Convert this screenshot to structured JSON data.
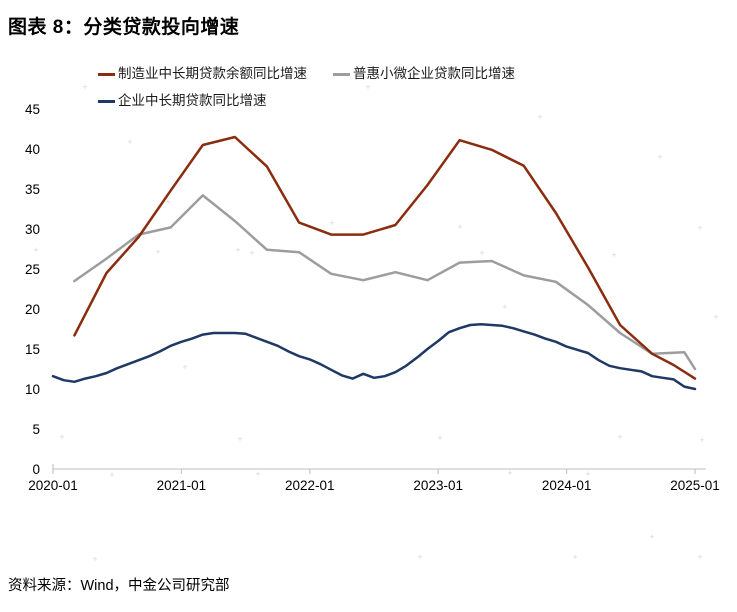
{
  "page": {
    "title": "图表 8：分类贷款投向增速",
    "source": "资料来源：Wind，中金公司研究部"
  },
  "colors": {
    "manufacturing": "#8A2D0F",
    "inclusive": "#9D9D9D",
    "enterprise": "#1F3864",
    "axis": "#C9C9C9",
    "watermark": "#B8B8B8",
    "text": "#000000"
  },
  "chart_data": {
    "type": "line",
    "title": "图表 8：分类贷款投向增速",
    "xlabel": "",
    "ylabel": "",
    "ylim": [
      0,
      45
    ],
    "yticks": [
      0,
      5,
      10,
      15,
      20,
      25,
      30,
      35,
      40,
      45
    ],
    "xticks": [
      "2020-01",
      "2021-01",
      "2022-01",
      "2023-01",
      "2024-01",
      "2025-01"
    ],
    "grid": false,
    "legend_position": "top",
    "watermark_glyph": "+",
    "series": [
      {
        "name": "制造业中长期贷款余额同比增速",
        "color": "#8A2D0F",
        "points": [
          [
            "2020-03",
            16.7
          ],
          [
            "2020-06",
            24.5
          ],
          [
            "2020-09",
            29.0
          ],
          [
            "2020-12",
            34.8
          ],
          [
            "2021-03",
            40.5
          ],
          [
            "2021-06",
            41.5
          ],
          [
            "2021-09",
            37.8
          ],
          [
            "2021-12",
            30.8
          ],
          [
            "2022-03",
            29.3
          ],
          [
            "2022-06",
            29.3
          ],
          [
            "2022-09",
            30.5
          ],
          [
            "2022-12",
            35.5
          ],
          [
            "2023-03",
            41.1
          ],
          [
            "2023-06",
            39.9
          ],
          [
            "2023-09",
            37.9
          ],
          [
            "2023-12",
            32.0
          ],
          [
            "2024-03",
            25.2
          ],
          [
            "2024-06",
            18.0
          ],
          [
            "2024-09",
            14.4
          ],
          [
            "2024-11",
            13.0
          ],
          [
            "2025-01",
            11.3
          ]
        ]
      },
      {
        "name": "普惠小微企业贷款同比增速",
        "color": "#9D9D9D",
        "points": [
          [
            "2020-03",
            23.5
          ],
          [
            "2020-06",
            26.3
          ],
          [
            "2020-09",
            29.3
          ],
          [
            "2020-12",
            30.2
          ],
          [
            "2021-03",
            34.2
          ],
          [
            "2021-06",
            31.0
          ],
          [
            "2021-09",
            27.4
          ],
          [
            "2021-12",
            27.1
          ],
          [
            "2022-03",
            24.4
          ],
          [
            "2022-06",
            23.6
          ],
          [
            "2022-09",
            24.6
          ],
          [
            "2022-12",
            23.6
          ],
          [
            "2023-03",
            25.8
          ],
          [
            "2023-06",
            26.0
          ],
          [
            "2023-09",
            24.2
          ],
          [
            "2023-12",
            23.4
          ],
          [
            "2024-03",
            20.5
          ],
          [
            "2024-06",
            17.0
          ],
          [
            "2024-09",
            14.4
          ],
          [
            "2024-12",
            14.6
          ],
          [
            "2025-01",
            12.5
          ]
        ]
      },
      {
        "name": "企业中长期贷款同比增速",
        "color": "#1F3864",
        "points": [
          [
            "2020-01",
            11.6
          ],
          [
            "2020-02",
            11.1
          ],
          [
            "2020-03",
            10.9
          ],
          [
            "2020-04",
            11.3
          ],
          [
            "2020-05",
            11.6
          ],
          [
            "2020-06",
            12.0
          ],
          [
            "2020-07",
            12.6
          ],
          [
            "2020-08",
            13.1
          ],
          [
            "2020-09",
            13.6
          ],
          [
            "2020-10",
            14.1
          ],
          [
            "2020-11",
            14.7
          ],
          [
            "2020-12",
            15.4
          ],
          [
            "2021-01",
            15.9
          ],
          [
            "2021-02",
            16.3
          ],
          [
            "2021-03",
            16.8
          ],
          [
            "2021-04",
            17.0
          ],
          [
            "2021-05",
            17.0
          ],
          [
            "2021-06",
            17.0
          ],
          [
            "2021-07",
            16.9
          ],
          [
            "2021-08",
            16.4
          ],
          [
            "2021-09",
            15.9
          ],
          [
            "2021-10",
            15.4
          ],
          [
            "2021-11",
            14.7
          ],
          [
            "2021-12",
            14.1
          ],
          [
            "2022-01",
            13.7
          ],
          [
            "2022-02",
            13.1
          ],
          [
            "2022-03",
            12.4
          ],
          [
            "2022-04",
            11.7
          ],
          [
            "2022-05",
            11.3
          ],
          [
            "2022-06",
            11.9
          ],
          [
            "2022-07",
            11.4
          ],
          [
            "2022-08",
            11.6
          ],
          [
            "2022-09",
            12.1
          ],
          [
            "2022-10",
            12.9
          ],
          [
            "2022-11",
            13.9
          ],
          [
            "2022-12",
            15.0
          ],
          [
            "2023-01",
            16.0
          ],
          [
            "2023-02",
            17.1
          ],
          [
            "2023-03",
            17.6
          ],
          [
            "2023-04",
            18.0
          ],
          [
            "2023-05",
            18.1
          ],
          [
            "2023-06",
            18.0
          ],
          [
            "2023-07",
            17.9
          ],
          [
            "2023-08",
            17.6
          ],
          [
            "2023-09",
            17.2
          ],
          [
            "2023-10",
            16.8
          ],
          [
            "2023-11",
            16.3
          ],
          [
            "2023-12",
            15.9
          ],
          [
            "2024-01",
            15.3
          ],
          [
            "2024-02",
            14.9
          ],
          [
            "2024-03",
            14.5
          ],
          [
            "2024-04",
            13.6
          ],
          [
            "2024-05",
            12.9
          ],
          [
            "2024-06",
            12.6
          ],
          [
            "2024-07",
            12.4
          ],
          [
            "2024-08",
            12.2
          ],
          [
            "2024-09",
            11.6
          ],
          [
            "2024-10",
            11.4
          ],
          [
            "2024-11",
            11.2
          ],
          [
            "2024-12",
            10.3
          ],
          [
            "2025-01",
            10.0
          ]
        ]
      }
    ]
  }
}
